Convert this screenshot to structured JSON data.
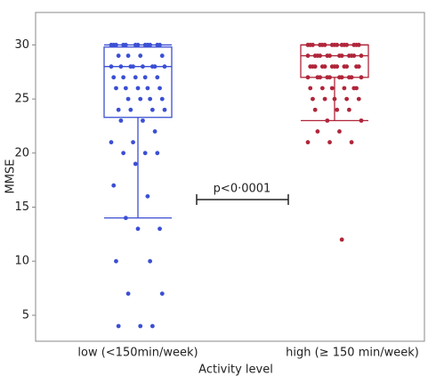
{
  "chart_data": {
    "type": "box",
    "y_label": "MMSE",
    "x_label": "Activity level",
    "annotation": "p<0·0001",
    "ylim": [
      2.6,
      33
    ],
    "yticks": [
      5,
      10,
      15,
      20,
      25,
      30
    ],
    "categories": [
      "low (<150min/week)",
      "high (≥ 150 min/week)"
    ],
    "boxes": [
      {
        "color": "#3b4fd4",
        "whisker_low": 14,
        "q1": 23.3,
        "median": 28,
        "q3": 29.8,
        "whisker_high": 30,
        "points": [
          30,
          30,
          30,
          30,
          30,
          30,
          30,
          30,
          30,
          30,
          30,
          30,
          29,
          29,
          29,
          29,
          28,
          28,
          28,
          28,
          28,
          28,
          28,
          28,
          27,
          27,
          27,
          27,
          27,
          26,
          26,
          26,
          26,
          26,
          25,
          25,
          25,
          25,
          24,
          24,
          24,
          24,
          23,
          23,
          22,
          21,
          21,
          20,
          20,
          20,
          19,
          17,
          16,
          14,
          13,
          13,
          10,
          10,
          7,
          7,
          4,
          4,
          4
        ]
      },
      {
        "color": "#b0253a",
        "whisker_low": 23,
        "q1": 27,
        "median": 29,
        "q3": 30,
        "whisker_high": 30,
        "points": [
          30,
          30,
          30,
          30,
          30,
          30,
          30,
          30,
          30,
          30,
          30,
          30,
          30,
          30,
          30,
          29,
          29,
          29,
          29,
          29,
          29,
          29,
          29,
          29,
          29,
          29,
          29,
          28,
          28,
          28,
          28,
          28,
          28,
          28,
          28,
          28,
          28,
          28,
          28,
          27,
          27,
          27,
          27,
          27,
          27,
          27,
          27,
          27,
          27,
          26,
          26,
          26,
          26,
          26,
          26,
          25,
          25,
          25,
          25,
          25,
          24,
          24,
          24,
          23,
          23,
          22,
          22,
          21,
          21,
          21,
          12
        ]
      }
    ]
  }
}
